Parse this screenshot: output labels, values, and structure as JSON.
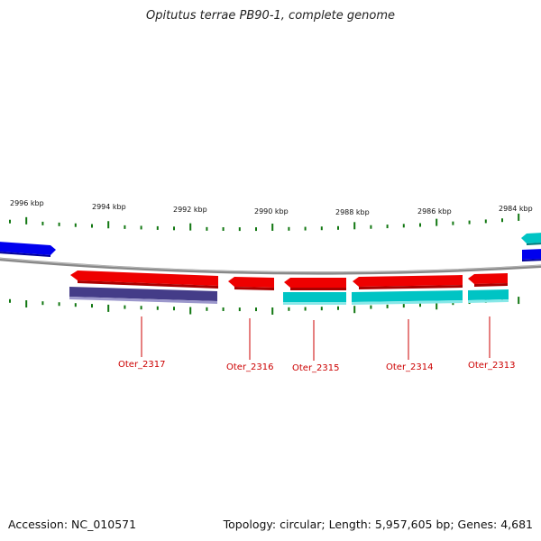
{
  "header": {
    "title": "Opitutus terrae PB90-1, complete genome"
  },
  "footer": {
    "accession": "Accession: NC_010571",
    "summary": "Topology: circular; Length: 5,957,605 bp; Genes: 4,681"
  },
  "scale_labels": [
    "2996 kbp",
    "2994 kbp",
    "2992 kbp",
    "2990 kbp",
    "2988 kbp",
    "2986 kbp",
    "2984 kbp"
  ],
  "genes": [
    {
      "locus": "Oter_2317"
    },
    {
      "locus": "Oter_2316"
    },
    {
      "locus": "Oter_2315"
    },
    {
      "locus": "Oter_2314"
    },
    {
      "locus": "Oter_2313"
    }
  ],
  "colors": {
    "backbone": "#808080",
    "cds_red": "#ee0000",
    "cds_blue": "#0000ee",
    "cds_navy": "#443c88",
    "cds_cyan": "#00c4c4",
    "tick": "#117711",
    "label": "#cc0000"
  }
}
